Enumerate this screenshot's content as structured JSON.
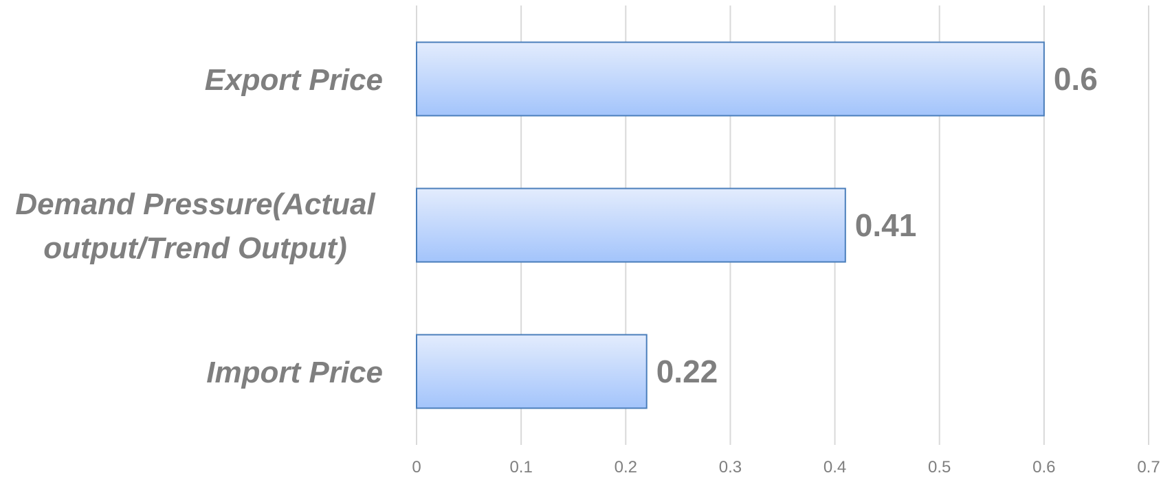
{
  "chart_data": {
    "type": "bar",
    "orientation": "horizontal",
    "categories": [
      "Export Price",
      "Demand Pressure(Actual output/Trend Output)",
      "Import Price"
    ],
    "category_label_lines": [
      [
        "Export Price"
      ],
      [
        "Demand Pressure(Actual",
        "output/Trend Output)"
      ],
      [
        "Import Price"
      ]
    ],
    "values": [
      0.6,
      0.41,
      0.22
    ],
    "data_labels": [
      "0.6",
      "0.41",
      "0.22"
    ],
    "xlim": [
      0,
      0.7
    ],
    "x_ticks": [
      "0",
      "0.1",
      "0.2",
      "0.3",
      "0.4",
      "0.5",
      "0.6",
      "0.7"
    ],
    "title": "",
    "xlabel": "",
    "ylabel": "",
    "grid": "vertical",
    "legend": "none",
    "colors": {
      "bar_fill_top": "#e3ecfd",
      "bar_fill_bottom": "#a3c4fb",
      "bar_stroke": "#4a7ebb",
      "gridline": "#d9d9d9",
      "text": "#7f7f7f"
    }
  }
}
